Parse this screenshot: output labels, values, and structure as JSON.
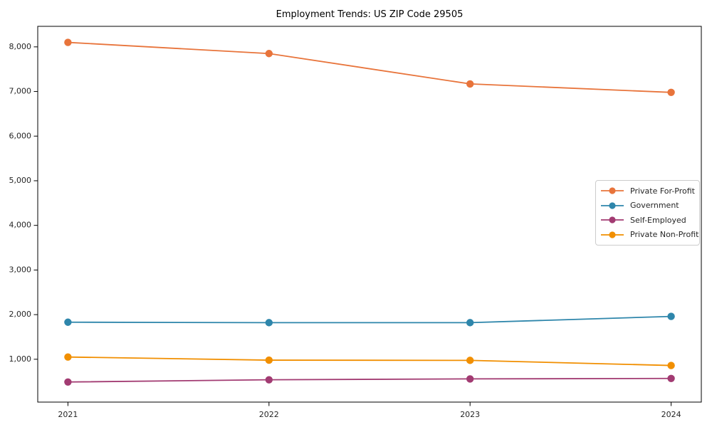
{
  "title": "Employment Trends: US ZIP Code 29505",
  "chart_data": {
    "type": "line",
    "title": "Employment Trends: US ZIP Code 29505",
    "xlabel": "",
    "ylabel": "",
    "x": [
      2021,
      2022,
      2023,
      2024
    ],
    "xtick_labels": [
      "2021",
      "2022",
      "2023",
      "2024"
    ],
    "yticks": [
      1000,
      2000,
      3000,
      4000,
      5000,
      6000,
      7000,
      8000
    ],
    "ytick_labels": [
      "1,000",
      "2,000",
      "3,000",
      "4,000",
      "5,000",
      "6,000",
      "7,000",
      "8,000"
    ],
    "ylim": [
      40,
      8460
    ],
    "grid": false,
    "marker": "circle",
    "legend_position": "center-right",
    "series": [
      {
        "name": "Private For-Profit",
        "color": "#E8743B",
        "values": [
          8100,
          7850,
          7170,
          6980
        ]
      },
      {
        "name": "Government",
        "color": "#2E86AB",
        "values": [
          1830,
          1820,
          1820,
          1960
        ]
      },
      {
        "name": "Self-Employed",
        "color": "#A23B72",
        "values": [
          490,
          540,
          560,
          570
        ]
      },
      {
        "name": "Private Non-Profit",
        "color": "#F18F01",
        "values": [
          1050,
          980,
          975,
          860
        ]
      }
    ]
  }
}
